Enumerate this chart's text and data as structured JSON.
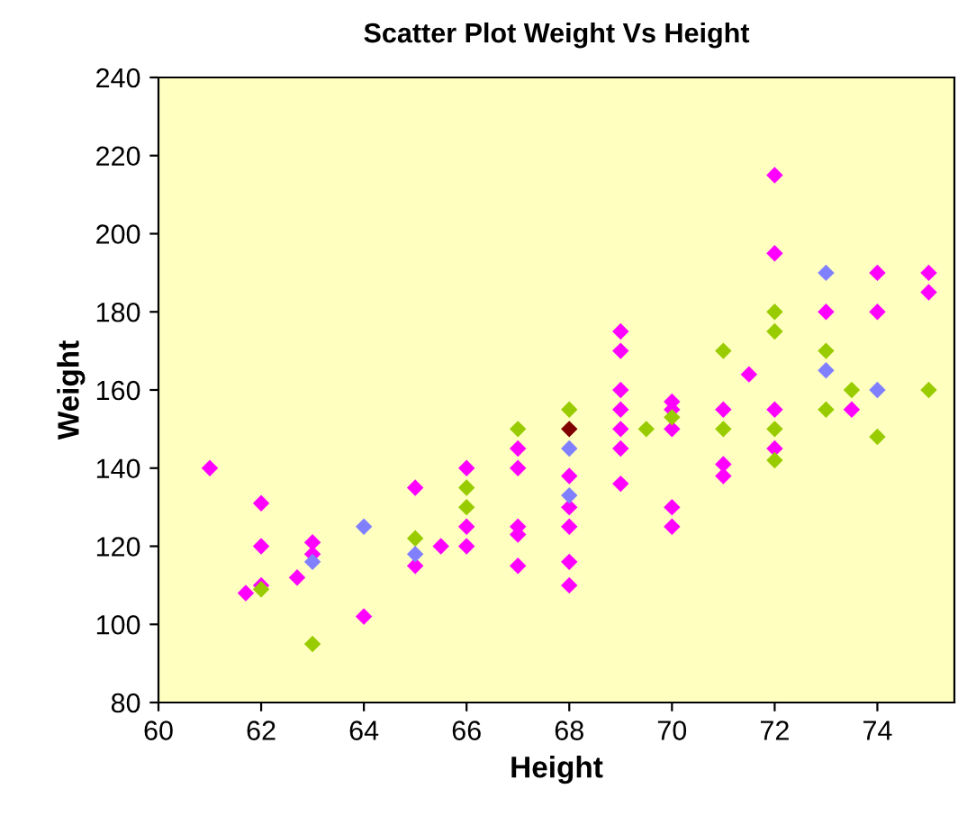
{
  "chart_data": {
    "type": "scatter",
    "title": "Scatter Plot Weight Vs Height",
    "xlabel": "Height",
    "ylabel": "Weight",
    "xlim": [
      60,
      75.5
    ],
    "xticks": [
      60,
      62,
      64,
      66,
      68,
      70,
      72,
      74
    ],
    "ylim": [
      80,
      240
    ],
    "yticks": [
      80,
      100,
      120,
      140,
      160,
      180,
      200,
      220,
      240
    ],
    "grid": false,
    "legend": false,
    "marker": "diamond",
    "series": [
      {
        "color": "#ff00ff",
        "x": [
          61,
          61.7,
          62,
          62,
          62,
          62.7,
          63,
          63,
          64,
          65,
          65,
          65.5,
          66,
          66,
          66,
          67,
          67,
          67,
          67,
          67,
          68,
          68,
          68,
          68,
          68,
          69,
          69,
          69,
          69,
          69,
          69,
          69,
          70,
          70,
          70,
          70,
          70,
          71,
          71,
          71,
          71.5,
          72,
          72,
          72,
          72,
          73,
          73.5,
          74,
          74,
          75,
          75
        ],
        "values": [
          140,
          108,
          131,
          120,
          110,
          112,
          121,
          118,
          102,
          135,
          115,
          120,
          140,
          125,
          120,
          145,
          140,
          125,
          123,
          115,
          138,
          130,
          125,
          116,
          110,
          175,
          170,
          160,
          155,
          150,
          145,
          136,
          157,
          155,
          150,
          130,
          125,
          155,
          141,
          138,
          164,
          215,
          195,
          155,
          145,
          180,
          155,
          190,
          180,
          190,
          185
        ]
      },
      {
        "color": "#99cc00",
        "x": [
          62,
          63,
          65,
          66,
          66,
          67,
          68,
          69.5,
          70,
          71,
          71,
          72,
          72,
          72,
          72,
          73,
          73,
          73.5,
          74,
          75
        ],
        "values": [
          109,
          95,
          122,
          135,
          130,
          150,
          155,
          150,
          153,
          170,
          150,
          180,
          175,
          150,
          142,
          170,
          155,
          160,
          148,
          160
        ]
      },
      {
        "color": "#8080ff",
        "x": [
          63,
          64,
          65,
          68,
          68,
          73,
          73,
          74
        ],
        "values": [
          116,
          125,
          118,
          145,
          133,
          190,
          165,
          160
        ]
      },
      {
        "color": "#800000",
        "x": [
          68
        ],
        "values": [
          150
        ]
      }
    ]
  }
}
